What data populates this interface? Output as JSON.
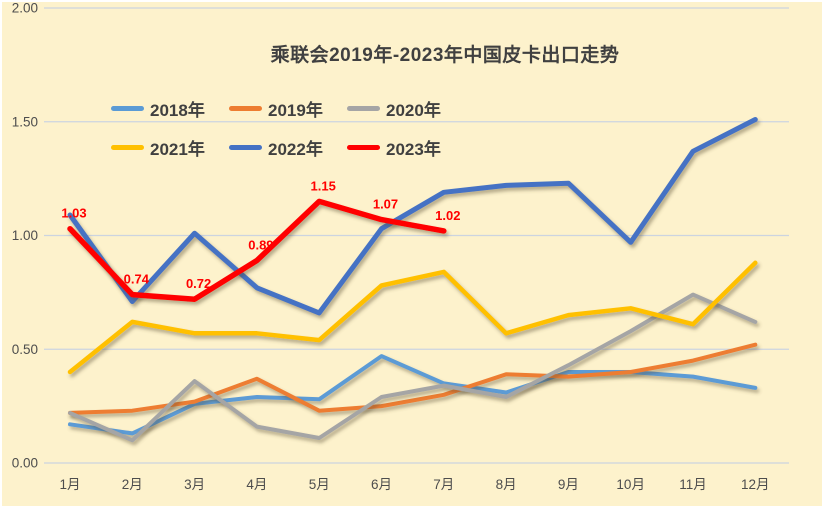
{
  "chart_data": {
    "type": "line",
    "title": "乘联会2019年-2023年中国皮卡出口走势",
    "categories": [
      "1月",
      "2月",
      "3月",
      "4月",
      "5月",
      "6月",
      "7月",
      "8月",
      "9月",
      "10月",
      "11月",
      "12月"
    ],
    "series": [
      {
        "name": "2018年",
        "color": "#5B9BD5",
        "values": [
          0.17,
          0.13,
          0.26,
          0.29,
          0.28,
          0.47,
          0.35,
          0.31,
          0.4,
          0.4,
          0.38,
          0.33
        ]
      },
      {
        "name": "2019年",
        "color": "#ED7D31",
        "values": [
          0.22,
          0.23,
          0.27,
          0.37,
          0.23,
          0.25,
          0.3,
          0.39,
          0.38,
          0.4,
          0.45,
          0.52
        ]
      },
      {
        "name": "2020年",
        "color": "#A5A5A5",
        "values": [
          0.22,
          0.1,
          0.36,
          0.16,
          0.11,
          0.29,
          0.34,
          0.29,
          0.43,
          0.58,
          0.74,
          0.62
        ]
      },
      {
        "name": "2021年",
        "color": "#FFC000",
        "values": [
          0.4,
          0.62,
          0.57,
          0.57,
          0.54,
          0.78,
          0.84,
          0.57,
          0.65,
          0.68,
          0.61,
          0.88
        ]
      },
      {
        "name": "2022年",
        "color": "#4472C4",
        "values": [
          1.09,
          0.71,
          1.01,
          0.77,
          0.66,
          1.03,
          1.19,
          1.22,
          1.23,
          0.97,
          1.37,
          1.51
        ]
      },
      {
        "name": "2023年",
        "color": "#FF0000",
        "show_labels": true,
        "values": [
          1.03,
          0.74,
          0.72,
          0.89,
          1.15,
          1.07,
          1.02,
          null,
          null,
          null,
          null,
          null
        ],
        "labels": [
          "1.03",
          "0.74",
          "0.72",
          "0.89",
          "1.15",
          "1.07",
          "1.02"
        ]
      }
    ],
    "y_axis": {
      "tick_labels": [
        "0.00",
        "0.50",
        "1.00",
        "1.50",
        "2.00"
      ],
      "ylim": [
        0,
        2
      ]
    },
    "x_axis": {
      "label": ""
    },
    "legend": {
      "position": "top-left",
      "rows": [
        [
          "2018年",
          "2019年",
          "2020年"
        ],
        [
          "2021年",
          "2022年",
          "2023年"
        ]
      ]
    },
    "grid": "horizontal"
  },
  "colors": {
    "background": "#FDF2CC",
    "gridline": "#CCD4E0",
    "axis_text": "#4D4D4D",
    "title_text": "#404040",
    "data_label": "#FF0000"
  }
}
